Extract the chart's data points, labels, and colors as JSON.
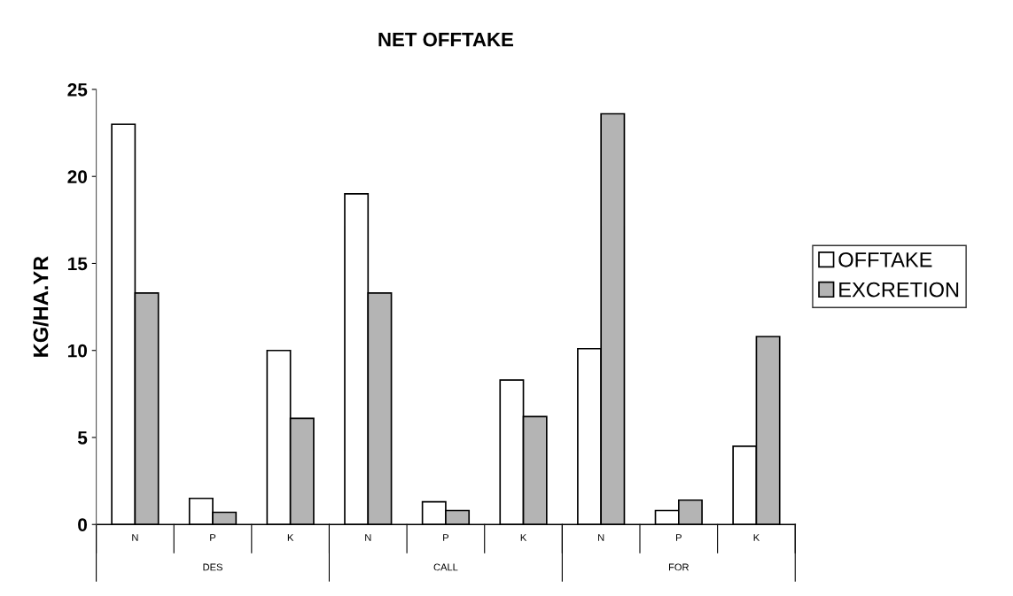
{
  "chart_data": {
    "type": "bar",
    "title": "NET OFFTAKE",
    "ylabel": "KG/HA.YR",
    "categories": [
      "N",
      "P",
      "K",
      "N",
      "P",
      "K",
      "N",
      "P",
      "K"
    ],
    "series": [
      {
        "name": "OFFTAKE",
        "color": "#ffffff",
        "values": [
          23.0,
          1.5,
          10.0,
          19.0,
          1.3,
          8.3,
          10.1,
          0.8,
          4.5
        ]
      },
      {
        "name": "EXCRETION",
        "color": "#b4b4b4",
        "values": [
          13.3,
          0.7,
          6.1,
          13.3,
          0.8,
          6.2,
          23.6,
          1.4,
          10.8
        ]
      }
    ],
    "annotations": [
      "DES",
      "CALL",
      "FOR"
    ],
    "ylim": [
      0,
      25
    ],
    "yticks": [
      0,
      5,
      10,
      15,
      20,
      25
    ],
    "grid": false,
    "legend": "right"
  }
}
